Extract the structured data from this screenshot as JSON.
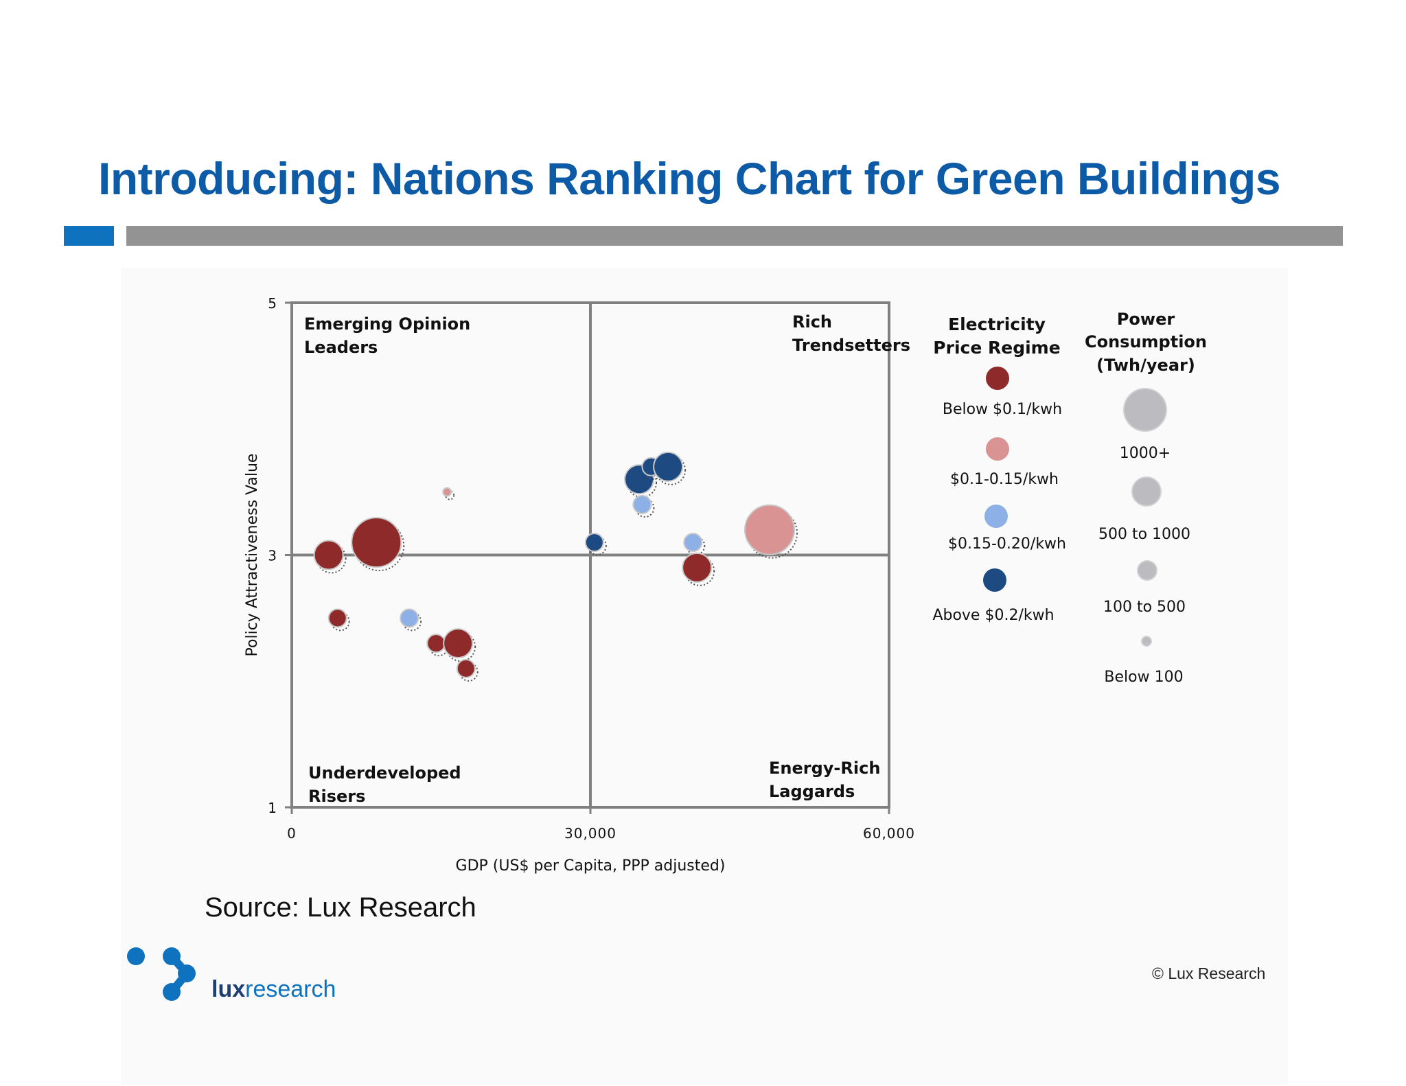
{
  "page": {
    "title": "Introducing: Nations Ranking Chart for Green Buildings",
    "source": "Source: Lux Research",
    "copyright": "© Lux Research",
    "logo_bold": "lux",
    "logo_rest": "research"
  },
  "colors": {
    "title": "#0d5aa7",
    "accent": "#0e72bf",
    "below_0_1": "#8f2a2a",
    "range_0_1_0_15": "#d99393",
    "range_0_15_0_20": "#8db0e6",
    "above_0_2": "#1e4a82",
    "size_legend": "#bcbcc0",
    "axis": "#808080"
  },
  "chart_data": {
    "type": "bubble",
    "xlabel": "GDP  (US$ per Capita, PPP adjusted)",
    "ylabel": "Policy Attractiveness Value",
    "xlim": [
      0,
      60000
    ],
    "ylim": [
      1,
      5
    ],
    "x_ticks": [
      {
        "value": 0,
        "label": "0"
      },
      {
        "value": 30000,
        "label": "30,000"
      },
      {
        "value": 60000,
        "label": "60,000"
      }
    ],
    "y_ticks": [
      {
        "value": 1,
        "label": "1"
      },
      {
        "value": 3,
        "label": "3"
      },
      {
        "value": 5,
        "label": "5"
      }
    ],
    "divider_x": 30000,
    "divider_y": 3,
    "quadrants": [
      {
        "id": "emerging-opinion-leaders",
        "line1": "Emerging Opinion",
        "line2": "Leaders",
        "position": "top-left"
      },
      {
        "id": "rich-trendsetters",
        "line1": "Rich",
        "line2": "Trendsetters",
        "position": "top-right"
      },
      {
        "id": "underdeveloped-risers",
        "line1": "Underdeveloped",
        "line2": "Risers",
        "position": "bottom-left"
      },
      {
        "id": "energy-rich-laggards",
        "line1": "Energy-Rich",
        "line2": "Laggards",
        "position": "bottom-right"
      }
    ],
    "points": [
      {
        "x": 3700,
        "y": 3.0,
        "size": "500 to 1000",
        "regime": "below_0_1"
      },
      {
        "x": 8500,
        "y": 3.1,
        "size": "1000+",
        "regime": "below_0_1"
      },
      {
        "x": 15600,
        "y": 3.5,
        "size": "Below 100",
        "regime": "range_0_1_0_15"
      },
      {
        "x": 4600,
        "y": 2.5,
        "size": "100 to 500",
        "regime": "below_0_1"
      },
      {
        "x": 11800,
        "y": 2.5,
        "size": "100 to 500",
        "regime": "range_0_15_0_20"
      },
      {
        "x": 14500,
        "y": 2.3,
        "size": "100 to 500",
        "regime": "below_0_1"
      },
      {
        "x": 16700,
        "y": 2.3,
        "size": "500 to 1000",
        "regime": "below_0_1"
      },
      {
        "x": 17500,
        "y": 2.1,
        "size": "100 to 500",
        "regime": "below_0_1"
      },
      {
        "x": 30400,
        "y": 3.1,
        "size": "100 to 500",
        "regime": "above_0_2"
      },
      {
        "x": 34900,
        "y": 3.6,
        "size": "500 to 1000",
        "regime": "above_0_2"
      },
      {
        "x": 36100,
        "y": 3.7,
        "size": "100 to 500",
        "regime": "above_0_2"
      },
      {
        "x": 37800,
        "y": 3.7,
        "size": "500 to 1000",
        "regime": "above_0_2"
      },
      {
        "x": 35200,
        "y": 3.4,
        "size": "100 to 500",
        "regime": "range_0_15_0_20"
      },
      {
        "x": 40300,
        "y": 3.1,
        "size": "100 to 500",
        "regime": "range_0_15_0_20"
      },
      {
        "x": 40700,
        "y": 2.9,
        "size": "500 to 1000",
        "regime": "below_0_1"
      },
      {
        "x": 48000,
        "y": 3.2,
        "size": "1000+",
        "regime": "range_0_1_0_15"
      }
    ],
    "legend_price": {
      "title_line1": "Electricity",
      "title_line2": "Price Regime",
      "items": [
        {
          "key": "below_0_1",
          "label": "Below $0.1/kwh"
        },
        {
          "key": "range_0_1_0_15",
          "label": "$0.1-0.15/kwh"
        },
        {
          "key": "range_0_15_0_20",
          "label": "$0.15-0.20/kwh"
        },
        {
          "key": "above_0_2",
          "label": "Above $0.2/kwh"
        }
      ]
    },
    "legend_size": {
      "title_line1": "Power",
      "title_line2": "Consumption",
      "title_line3": "(Twh/year)",
      "items": [
        {
          "key": "1000+",
          "label": "1000+"
        },
        {
          "key": "500 to 1000",
          "label": "500 to 1000"
        },
        {
          "key": "100 to 500",
          "label": "100 to 500"
        },
        {
          "key": "Below 100",
          "label": "Below 100"
        }
      ]
    }
  }
}
